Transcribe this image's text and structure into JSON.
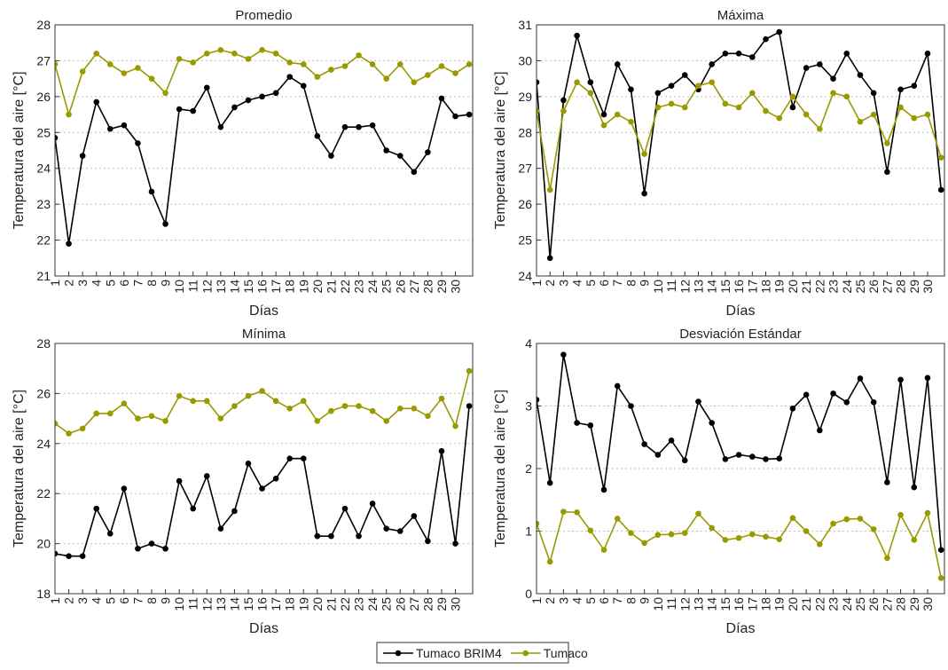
{
  "chart_data": [
    {
      "type": "line",
      "title": "Promedio",
      "xlabel": "Días",
      "ylabel": "Temperatura del aire [°C]",
      "x": [
        1,
        2,
        3,
        4,
        5,
        6,
        7,
        8,
        9,
        10,
        11,
        12,
        13,
        14,
        15,
        16,
        17,
        18,
        19,
        20,
        21,
        22,
        23,
        24,
        25,
        26,
        27,
        28,
        29,
        30,
        31
      ],
      "xlim": [
        1,
        31.25
      ],
      "xticks": [
        1,
        2,
        3,
        4,
        5,
        6,
        7,
        8,
        9,
        10,
        11,
        12,
        13,
        14,
        15,
        16,
        17,
        18,
        19,
        20,
        21,
        22,
        23,
        24,
        25,
        26,
        27,
        28,
        29,
        30
      ],
      "ylim": [
        21,
        28
      ],
      "yticks": [
        21,
        22,
        23,
        24,
        25,
        26,
        27,
        28
      ],
      "grid": true,
      "series": [
        {
          "color": "#000000",
          "values": [
            24.85,
            21.9,
            24.35,
            25.85,
            25.1,
            25.2,
            24.7,
            23.35,
            22.45,
            25.65,
            25.6,
            26.25,
            25.15,
            25.7,
            25.9,
            26.0,
            26.1,
            26.55,
            26.3,
            24.9,
            24.35,
            25.15,
            25.15,
            25.2,
            24.5,
            24.35,
            23.9,
            24.45,
            25.95,
            25.45,
            25.5
          ]
        },
        {
          "color": "#999900",
          "values": [
            26.9,
            25.5,
            26.7,
            27.2,
            26.9,
            26.65,
            26.8,
            26.5,
            26.1,
            27.05,
            26.95,
            27.2,
            27.3,
            27.2,
            27.05,
            27.3,
            27.2,
            26.95,
            26.9,
            26.55,
            26.75,
            26.85,
            27.15,
            26.9,
            26.5,
            26.9,
            26.4,
            26.6,
            26.85,
            26.65,
            26.9
          ]
        }
      ]
    },
    {
      "type": "line",
      "title": "Máxima",
      "xlabel": "Días",
      "ylabel": "Temperatura del aire [°C]",
      "x": [
        1,
        2,
        3,
        4,
        5,
        6,
        7,
        8,
        9,
        10,
        11,
        12,
        13,
        14,
        15,
        16,
        17,
        18,
        19,
        20,
        21,
        22,
        23,
        24,
        25,
        26,
        27,
        28,
        29,
        30,
        31
      ],
      "xlim": [
        1,
        31.25
      ],
      "xticks": [
        1,
        2,
        3,
        4,
        5,
        6,
        7,
        8,
        9,
        10,
        11,
        12,
        13,
        14,
        15,
        16,
        17,
        18,
        19,
        20,
        21,
        22,
        23,
        24,
        25,
        26,
        27,
        28,
        29,
        30
      ],
      "ylim": [
        24,
        31
      ],
      "yticks": [
        24,
        25,
        26,
        27,
        28,
        29,
        30,
        31
      ],
      "grid": true,
      "series": [
        {
          "color": "#000000",
          "values": [
            29.4,
            24.5,
            28.9,
            30.7,
            29.4,
            28.5,
            29.9,
            29.2,
            26.3,
            29.1,
            29.3,
            29.6,
            29.2,
            29.9,
            30.2,
            30.2,
            30.1,
            30.6,
            30.8,
            28.7,
            29.8,
            29.9,
            29.5,
            30.2,
            29.6,
            29.1,
            26.9,
            29.2,
            29.3,
            30.2,
            26.4
          ]
        },
        {
          "color": "#999900",
          "values": [
            28.6,
            26.4,
            28.6,
            29.4,
            29.1,
            28.2,
            28.5,
            28.3,
            27.4,
            28.7,
            28.8,
            28.7,
            29.3,
            29.4,
            28.8,
            28.7,
            29.1,
            28.6,
            28.4,
            29.0,
            28.5,
            28.1,
            29.1,
            29.0,
            28.3,
            28.5,
            27.7,
            28.7,
            28.4,
            28.5,
            27.3
          ]
        }
      ]
    },
    {
      "type": "line",
      "title": "Mínima",
      "xlabel": "Días",
      "ylabel": "Temperatura del aire [°C]",
      "x": [
        1,
        2,
        3,
        4,
        5,
        6,
        7,
        8,
        9,
        10,
        11,
        12,
        13,
        14,
        15,
        16,
        17,
        18,
        19,
        20,
        21,
        22,
        23,
        24,
        25,
        26,
        27,
        28,
        29,
        30,
        31
      ],
      "xlim": [
        1,
        31.25
      ],
      "xticks": [
        1,
        2,
        3,
        4,
        5,
        6,
        7,
        8,
        9,
        10,
        11,
        12,
        13,
        14,
        15,
        16,
        17,
        18,
        19,
        20,
        21,
        22,
        23,
        24,
        25,
        26,
        27,
        28,
        29,
        30
      ],
      "ylim": [
        18,
        28
      ],
      "yticks": [
        18,
        20,
        22,
        24,
        26,
        28
      ],
      "grid": true,
      "series": [
        {
          "color": "#000000",
          "values": [
            19.6,
            19.5,
            19.5,
            21.4,
            20.4,
            22.2,
            19.8,
            20.0,
            19.8,
            22.5,
            21.4,
            22.7,
            20.6,
            21.3,
            23.2,
            22.2,
            22.6,
            23.4,
            23.4,
            20.3,
            20.3,
            21.4,
            20.3,
            21.6,
            20.6,
            20.5,
            21.1,
            20.1,
            23.7,
            20.0,
            25.5
          ]
        },
        {
          "color": "#999900",
          "values": [
            24.8,
            24.4,
            24.6,
            25.2,
            25.2,
            25.6,
            25.0,
            25.1,
            24.9,
            25.9,
            25.7,
            25.7,
            25.0,
            25.5,
            25.9,
            26.1,
            25.7,
            25.4,
            25.7,
            24.9,
            25.3,
            25.5,
            25.5,
            25.3,
            24.9,
            25.4,
            25.4,
            25.1,
            25.8,
            24.7,
            26.9
          ]
        }
      ]
    },
    {
      "type": "line",
      "title": "Desviación Estándar",
      "xlabel": "Días",
      "ylabel": "Temperatura del aire [°C]",
      "x": [
        1,
        2,
        3,
        4,
        5,
        6,
        7,
        8,
        9,
        10,
        11,
        12,
        13,
        14,
        15,
        16,
        17,
        18,
        19,
        20,
        21,
        22,
        23,
        24,
        25,
        26,
        27,
        28,
        29,
        30,
        31
      ],
      "xlim": [
        1,
        31.25
      ],
      "xticks": [
        1,
        2,
        3,
        4,
        5,
        6,
        7,
        8,
        9,
        10,
        11,
        12,
        13,
        14,
        15,
        16,
        17,
        18,
        19,
        20,
        21,
        22,
        23,
        24,
        25,
        26,
        27,
        28,
        29,
        30
      ],
      "ylim": [
        0,
        4
      ],
      "yticks": [
        0,
        1,
        2,
        3,
        4
      ],
      "grid": true,
      "series": [
        {
          "color": "#000000",
          "values": [
            3.1,
            1.77,
            3.82,
            2.73,
            2.69,
            1.66,
            3.32,
            3.0,
            2.39,
            2.22,
            2.45,
            2.13,
            3.07,
            2.73,
            2.15,
            2.22,
            2.19,
            2.15,
            2.16,
            2.96,
            3.18,
            2.61,
            3.2,
            3.06,
            3.44,
            3.06,
            1.78,
            3.42,
            1.7,
            3.45,
            0.7
          ]
        },
        {
          "color": "#999900",
          "values": [
            1.12,
            0.51,
            1.31,
            1.3,
            1.01,
            0.7,
            1.2,
            0.97,
            0.81,
            0.94,
            0.95,
            0.97,
            1.28,
            1.05,
            0.86,
            0.89,
            0.95,
            0.91,
            0.87,
            1.21,
            1.0,
            0.79,
            1.12,
            1.19,
            1.2,
            1.03,
            0.57,
            1.26,
            0.86,
            1.29,
            0.25
          ]
        }
      ]
    }
  ],
  "legend": {
    "entries": [
      {
        "name": "Tumaco BRIM4",
        "color": "#000000"
      },
      {
        "name": "Tumaco",
        "color": "#999900"
      }
    ]
  }
}
